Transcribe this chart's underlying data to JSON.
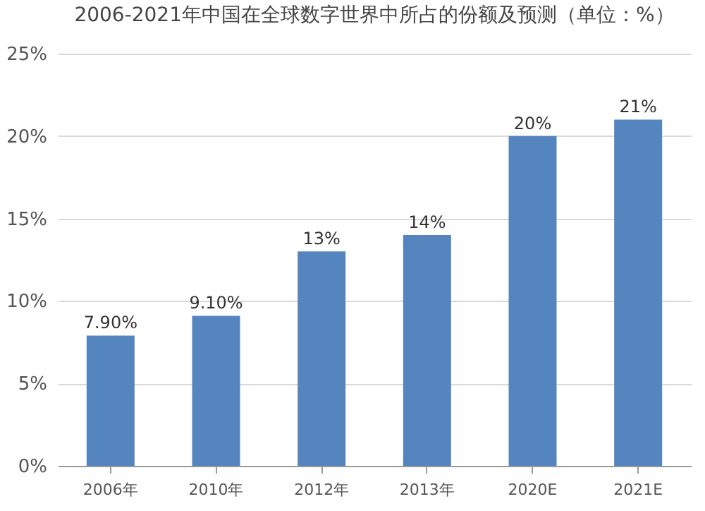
{
  "chart_data": {
    "type": "bar",
    "title": "2006-2021年中国在全球数字世界中所占的份额及预测（单位：%）",
    "categories": [
      "2006年",
      "2010年",
      "2012年",
      "2013年",
      "2020E",
      "2021E"
    ],
    "values": [
      7.9,
      9.1,
      13,
      14,
      20,
      21
    ],
    "value_labels": [
      "7.90%",
      "9.10%",
      "13%",
      "14%",
      "20%",
      "21%"
    ],
    "color": "#5585bf",
    "ylim": [
      0,
      25
    ],
    "yticks": [
      {
        "value": 0,
        "label": "0%"
      },
      {
        "value": 5,
        "label": "5%"
      },
      {
        "value": 10,
        "label": "10%"
      },
      {
        "value": 15,
        "label": "15%"
      },
      {
        "value": 20,
        "label": "20%"
      },
      {
        "value": 25,
        "label": "25%"
      }
    ],
    "grid": "y"
  }
}
